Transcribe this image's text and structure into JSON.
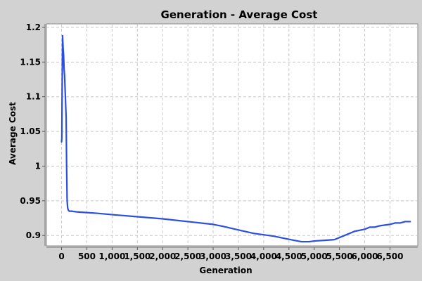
{
  "chart_data": {
    "type": "line",
    "title": "Generation - Average Cost",
    "xlabel": "Generation",
    "ylabel": "Average Cost",
    "xlim": [
      -300,
      7050
    ],
    "ylim": [
      0.885,
      1.205
    ],
    "xticks": [
      0,
      500,
      1000,
      1500,
      2000,
      2500,
      3000,
      3500,
      4000,
      4500,
      5000,
      5500,
      6000,
      6500
    ],
    "xtick_labels": [
      "0",
      "500",
      "1,000",
      "1,500",
      "2,000",
      "2,500",
      "3,000",
      "3,500",
      "4,000",
      "4,500",
      "5,000",
      "5,500",
      "6,000",
      "6,500"
    ],
    "yticks": [
      0.9,
      0.95,
      1.0,
      1.05,
      1.1,
      1.15,
      1.2
    ],
    "ytick_labels": [
      "0.9",
      "0.95",
      "1",
      "1.05",
      "1.1",
      "1.15",
      "1.2"
    ],
    "grid": true,
    "series": [
      {
        "color": "#2b4fe0",
        "x": [
          0,
          5,
          10,
          20,
          30,
          40,
          50,
          60,
          70,
          80,
          90,
          100,
          110,
          120,
          130,
          150,
          200,
          300,
          500,
          700,
          1000,
          1500,
          2000,
          2500,
          3000,
          3200,
          3500,
          3800,
          4000,
          4200,
          4400,
          4600,
          4750,
          4900,
          5000,
          5200,
          5400,
          5600,
          5800,
          6000,
          6100,
          6200,
          6300,
          6400,
          6500,
          6600,
          6700,
          6800,
          6900
        ],
        "y": [
          1.035,
          1.04,
          1.1,
          1.188,
          1.17,
          1.16,
          1.14,
          1.13,
          1.11,
          1.09,
          1.07,
          1.0,
          0.95,
          0.94,
          0.937,
          0.935,
          0.935,
          0.934,
          0.933,
          0.932,
          0.93,
          0.927,
          0.924,
          0.92,
          0.916,
          0.913,
          0.908,
          0.903,
          0.901,
          0.899,
          0.896,
          0.893,
          0.891,
          0.891,
          0.892,
          0.893,
          0.894,
          0.9,
          0.906,
          0.909,
          0.912,
          0.912,
          0.914,
          0.915,
          0.916,
          0.918,
          0.918,
          0.92,
          0.92
        ]
      }
    ]
  }
}
